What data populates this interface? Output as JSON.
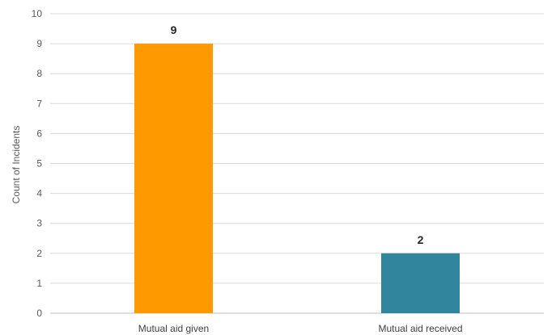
{
  "chart_data": {
    "type": "bar",
    "categories": [
      "Mutual aid given",
      "Mutual aid received"
    ],
    "values": [
      9,
      2
    ],
    "data_labels": [
      "9",
      "2"
    ],
    "colors": [
      "#FF9900",
      "#31859C"
    ],
    "title": "",
    "xlabel": "",
    "ylabel": "Count of Incidents",
    "ylim": [
      0,
      10
    ],
    "yticks": [
      "0",
      "1",
      "2",
      "3",
      "4",
      "5",
      "6",
      "7",
      "8",
      "9",
      "10"
    ],
    "grid": true,
    "legend": "none"
  }
}
